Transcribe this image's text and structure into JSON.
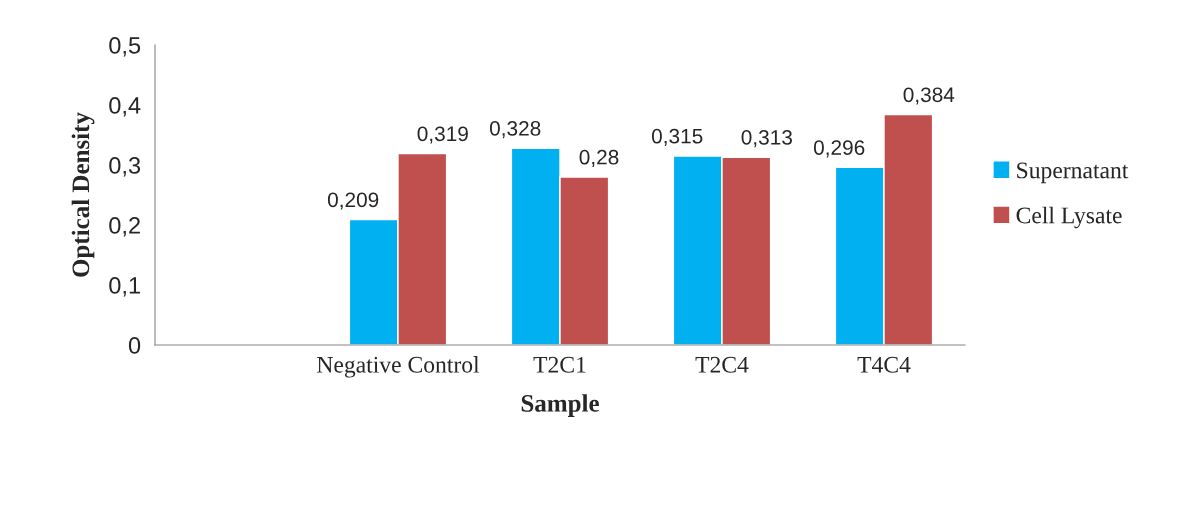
{
  "chart_data": {
    "type": "bar",
    "xlabel": "Sample",
    "ylabel": "Optical Density",
    "categories": [
      null,
      "Negative Control",
      "T2C1",
      "T2C4",
      "T4C4"
    ],
    "series": [
      {
        "name": "Supernatant",
        "color": "#00b0f0",
        "values": [
          null,
          0.209,
          0.328,
          0.315,
          0.296
        ],
        "value_labels": [
          null,
          "0,209",
          "0,328",
          "0,315",
          "0,296"
        ]
      },
      {
        "name": "Cell Lysate",
        "color": "#c0504d",
        "values": [
          null,
          0.319,
          0.28,
          0.313,
          0.384
        ],
        "value_labels": [
          null,
          "0,319",
          "0,28",
          "0,313",
          "0,384"
        ]
      }
    ],
    "ylim": [
      0,
      0.5
    ],
    "yticks": [
      0,
      {
        "value": 0.1,
        "label": "0,1"
      },
      {
        "value": 0.2,
        "label": "0,2"
      },
      {
        "value": 0.3,
        "label": "0,3"
      },
      {
        "value": 0.4,
        "label": "0,4"
      },
      {
        "value": 0.5,
        "label": "0,5"
      }
    ],
    "grid": false,
    "legend": "right"
  }
}
